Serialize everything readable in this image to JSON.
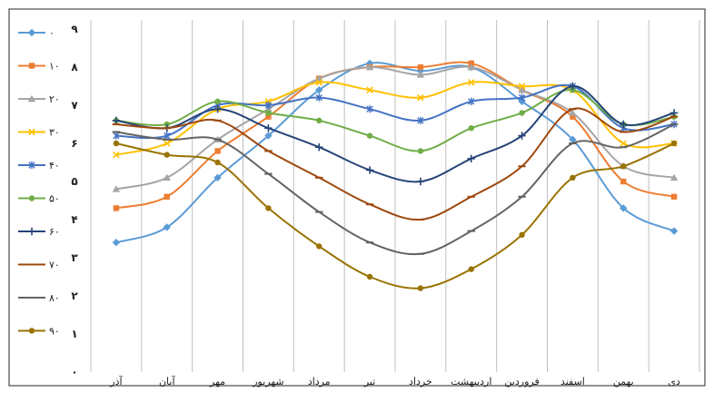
{
  "chart_data": {
    "type": "line",
    "categories": [
      "دی",
      "بهمن",
      "اسفند",
      "فروردین",
      "اردیبهشت",
      "خرداد",
      "تیر",
      "مرداد",
      "شهریور",
      "مهر",
      "آبان",
      "آذر"
    ],
    "y_ticks": [
      "۰",
      "۱",
      "۲",
      "۳",
      "۴",
      "۵",
      "۶",
      "۷",
      "۸",
      "۹"
    ],
    "ylim": [
      0,
      9
    ],
    "grid": "vertical",
    "legend_position": "left",
    "series": [
      {
        "name": "۰",
        "color": "#5b9bd5",
        "marker": "diamond",
        "values": [
          3.7,
          4.3,
          6.1,
          7.1,
          8.0,
          7.9,
          8.1,
          7.4,
          6.2,
          5.1,
          3.8,
          3.4
        ]
      },
      {
        "name": "۱۰",
        "color": "#ed7d31",
        "marker": "square",
        "values": [
          4.6,
          5.0,
          6.7,
          7.4,
          8.1,
          8.0,
          8.0,
          7.7,
          6.7,
          5.8,
          4.6,
          4.3
        ]
      },
      {
        "name": "۲۰",
        "color": "#a5a5a5",
        "marker": "triangle",
        "values": [
          5.1,
          5.4,
          6.8,
          7.4,
          8.0,
          7.8,
          8.0,
          7.7,
          6.9,
          6.1,
          5.1,
          4.8
        ]
      },
      {
        "name": "۳۰",
        "color": "#ffc000",
        "marker": "x",
        "values": [
          6.0,
          6.0,
          7.4,
          7.5,
          7.6,
          7.2,
          7.4,
          7.6,
          7.1,
          6.9,
          6.0,
          5.7
        ]
      },
      {
        "name": "۴۰",
        "color": "#4472c4",
        "marker": "star",
        "values": [
          6.5,
          6.4,
          7.5,
          7.2,
          7.1,
          6.6,
          6.9,
          7.2,
          7.0,
          7.0,
          6.2,
          6.2
        ]
      },
      {
        "name": "۵۰",
        "color": "#70ad47",
        "marker": "circle",
        "values": [
          6.7,
          6.5,
          7.4,
          6.8,
          6.4,
          5.8,
          6.2,
          6.6,
          6.8,
          7.1,
          6.5,
          6.6
        ]
      },
      {
        "name": "۶۰",
        "color": "#264478",
        "marker": "plus",
        "values": [
          6.8,
          6.5,
          7.5,
          6.2,
          5.6,
          5.0,
          5.3,
          5.9,
          6.4,
          6.9,
          6.4,
          6.6
        ]
      },
      {
        "name": "۷۰",
        "color": "#9e480e",
        "marker": "dash",
        "values": [
          6.7,
          6.3,
          6.9,
          5.4,
          4.6,
          4.0,
          4.4,
          5.1,
          5.8,
          6.6,
          6.4,
          6.5
        ]
      },
      {
        "name": "۸۰",
        "color": "#636363",
        "marker": "dash",
        "values": [
          6.5,
          5.9,
          6.0,
          4.6,
          3.7,
          3.1,
          3.4,
          4.2,
          5.2,
          6.1,
          6.1,
          6.3
        ]
      },
      {
        "name": "۹۰",
        "color": "#997300",
        "marker": "circle",
        "values": [
          6.0,
          5.4,
          5.1,
          3.6,
          2.7,
          2.2,
          2.5,
          3.3,
          4.3,
          5.5,
          5.7,
          6.0
        ]
      }
    ]
  }
}
